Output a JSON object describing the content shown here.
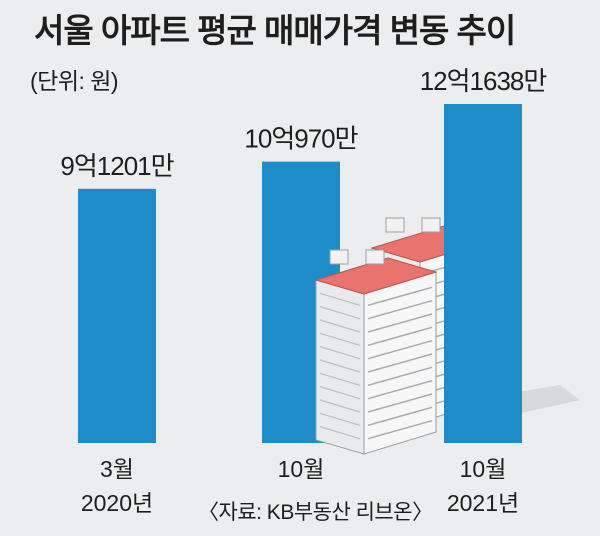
{
  "title": "서울 아파트 평균 매매가격 변동 추이",
  "unit_note": "(단위: 원)",
  "source": "〈자료: KB부동산 리브온〉",
  "colors": {
    "bar": "#1e8cc8",
    "background": "#ecedee",
    "roof": "#e8746d"
  },
  "chart_data": {
    "type": "bar",
    "categories": [
      "3월\n2020년",
      "10월",
      "10월\n2021년"
    ],
    "category_lines": [
      [
        "3월",
        "2020년"
      ],
      [
        "10월"
      ],
      [
        "10월",
        "2021년"
      ]
    ],
    "values": [
      912010000,
      1009700000,
      1216380000
    ],
    "value_labels": [
      "9억1201만",
      "10억970만",
      "12억1638만"
    ],
    "ylim": [
      0,
      1216380000
    ],
    "xlabel": "",
    "ylabel": "",
    "grid": false,
    "legend": "none"
  }
}
